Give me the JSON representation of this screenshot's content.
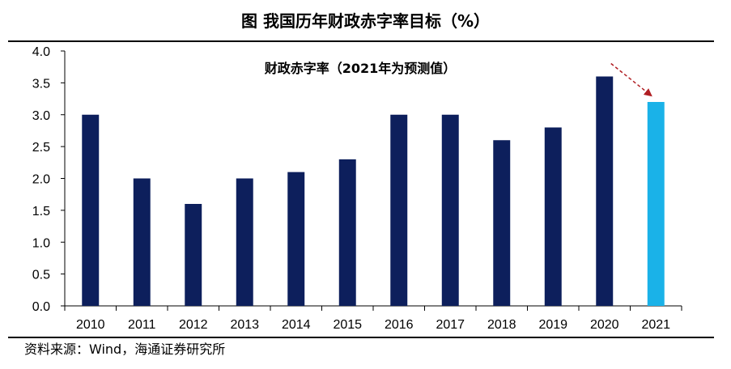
{
  "figure": {
    "title": "图 我国历年财政赤字率目标（%）",
    "source": "资料来源：Wind，海通证券研究所"
  },
  "colors": {
    "bar": "#0d1f5c",
    "bar_forecast": "#1ab2e8",
    "arrow": "#b01e23",
    "axis": "#000000"
  },
  "chart_data": {
    "type": "bar",
    "title": "财政赤字率（2021年为预测值）",
    "xlabel": "",
    "ylabel": "",
    "categories": [
      "2010",
      "2011",
      "2012",
      "2013",
      "2014",
      "2015",
      "2016",
      "2017",
      "2018",
      "2019",
      "2020",
      "2021"
    ],
    "values": [
      3.0,
      2.0,
      1.6,
      2.0,
      2.1,
      2.3,
      3.0,
      3.0,
      2.6,
      2.8,
      3.6,
      3.2
    ],
    "forecast_categories": [
      "2021"
    ],
    "ylim": [
      0,
      4.0
    ],
    "yticks": [
      "0.0",
      "0.5",
      "1.0",
      "1.5",
      "2.0",
      "2.5",
      "3.0",
      "3.5",
      "4.0"
    ],
    "grid": false,
    "legend": "none",
    "annotation": "dashed arrow pointing from 2020 down to 2021"
  }
}
